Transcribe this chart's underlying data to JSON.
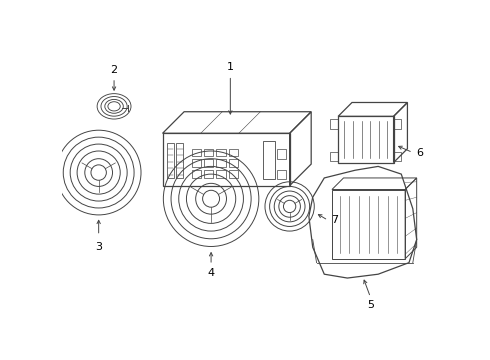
{
  "background_color": "#ffffff",
  "line_color": "#444444",
  "label_color": "#000000",
  "fig_width": 4.9,
  "fig_height": 3.6,
  "dpi": 100
}
